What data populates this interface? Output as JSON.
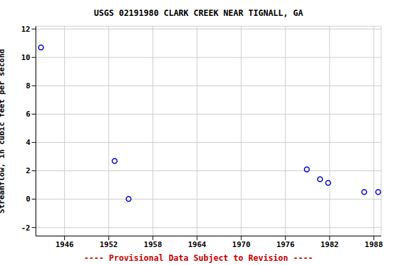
{
  "chart_data": {
    "type": "scatter",
    "title": "USGS 02191980 CLARK CREEK NEAR TIGNALL, GA",
    "y_label": "Streamflow, in cubic feet per second",
    "annotations": [
      "---- Provisional Data Subject to Revision ----"
    ],
    "x": [
      1942.8,
      1952.8,
      1954.7,
      1978.9,
      1980.7,
      1981.8,
      1986.7,
      1988.6
    ],
    "values": [
      10.7,
      2.7,
      0.02,
      2.1,
      1.4,
      1.15,
      0.5,
      0.5
    ],
    "color": "#0000cc",
    "marker": "circle",
    "xlim": [
      1942.1,
      1989
    ],
    "xticks": [
      1946,
      1952,
      1958,
      1964,
      1970,
      1976,
      1982,
      1988
    ],
    "ylim": [
      -2.6,
      12.2
    ],
    "yticks": [
      -2,
      0,
      2,
      4,
      6,
      8,
      10,
      12
    ],
    "grid": true
  }
}
